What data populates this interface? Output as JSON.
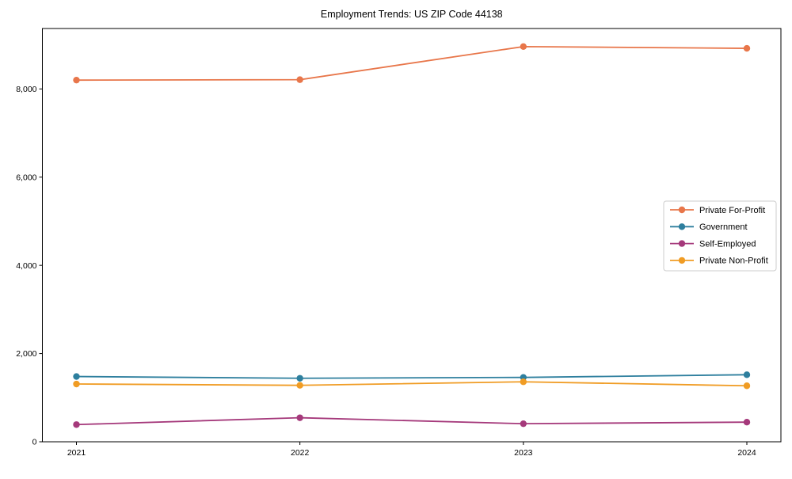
{
  "chart_data": {
    "type": "line",
    "title": "Employment Trends: US ZIP Code 44138",
    "xlabel": "",
    "ylabel": "",
    "categories": [
      "2021",
      "2022",
      "2023",
      "2024"
    ],
    "series": [
      {
        "name": "Private For-Profit",
        "color": "#E8764A",
        "values": [
          8200,
          8210,
          8960,
          8920
        ]
      },
      {
        "name": "Government",
        "color": "#2E7F9E",
        "values": [
          1480,
          1440,
          1460,
          1520
        ]
      },
      {
        "name": "Self-Employed",
        "color": "#A5397B",
        "values": [
          390,
          545,
          410,
          445
        ]
      },
      {
        "name": "Private Non-Profit",
        "color": "#F09C24",
        "values": [
          1310,
          1280,
          1360,
          1270
        ]
      }
    ],
    "ylim": [
      0,
      9370
    ],
    "yticks": [
      {
        "value": 0,
        "label": "0"
      },
      {
        "value": 2000,
        "label": "2,000"
      },
      {
        "value": 4000,
        "label": "4,000"
      },
      {
        "value": 6000,
        "label": "6,000"
      },
      {
        "value": 8000,
        "label": "8,000"
      }
    ],
    "grid": false,
    "marker": "circle",
    "legend_position": "right-middle",
    "frame_color": "#000000",
    "legend_border_color": "#cccccc",
    "legend_background": "#ffffff"
  }
}
